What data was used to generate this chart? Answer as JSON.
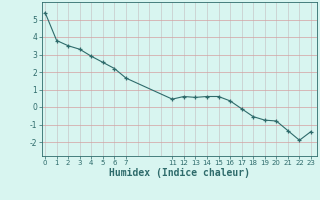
{
  "x": [
    0,
    1,
    2,
    3,
    4,
    5,
    6,
    7,
    11,
    12,
    13,
    14,
    15,
    16,
    17,
    18,
    19,
    20,
    21,
    22,
    23
  ],
  "y": [
    5.4,
    3.8,
    3.5,
    3.3,
    2.9,
    2.55,
    2.2,
    1.65,
    0.45,
    0.6,
    0.55,
    0.6,
    0.6,
    0.35,
    -0.1,
    -0.55,
    -0.75,
    -0.8,
    -1.35,
    -1.9,
    -1.4
  ],
  "line_color": "#2e6b6b",
  "marker": "+",
  "bg_color": "#d8f5f0",
  "grid_color_v": "#c8c8c8",
  "grid_color_h": "#d4a0a0",
  "xlabel": "Humidex (Indice chaleur)",
  "xlabel_fontsize": 7,
  "xticks": [
    0,
    1,
    2,
    3,
    4,
    5,
    6,
    7,
    11,
    12,
    13,
    14,
    15,
    16,
    17,
    18,
    19,
    20,
    21,
    22,
    23
  ],
  "yticks": [
    -2,
    -1,
    0,
    1,
    2,
    3,
    4,
    5
  ],
  "ylim": [
    -2.8,
    6.0
  ],
  "xlim": [
    -0.3,
    23.5
  ],
  "tick_color": "#2e6b6b",
  "axis_color": "#2e6b6b"
}
